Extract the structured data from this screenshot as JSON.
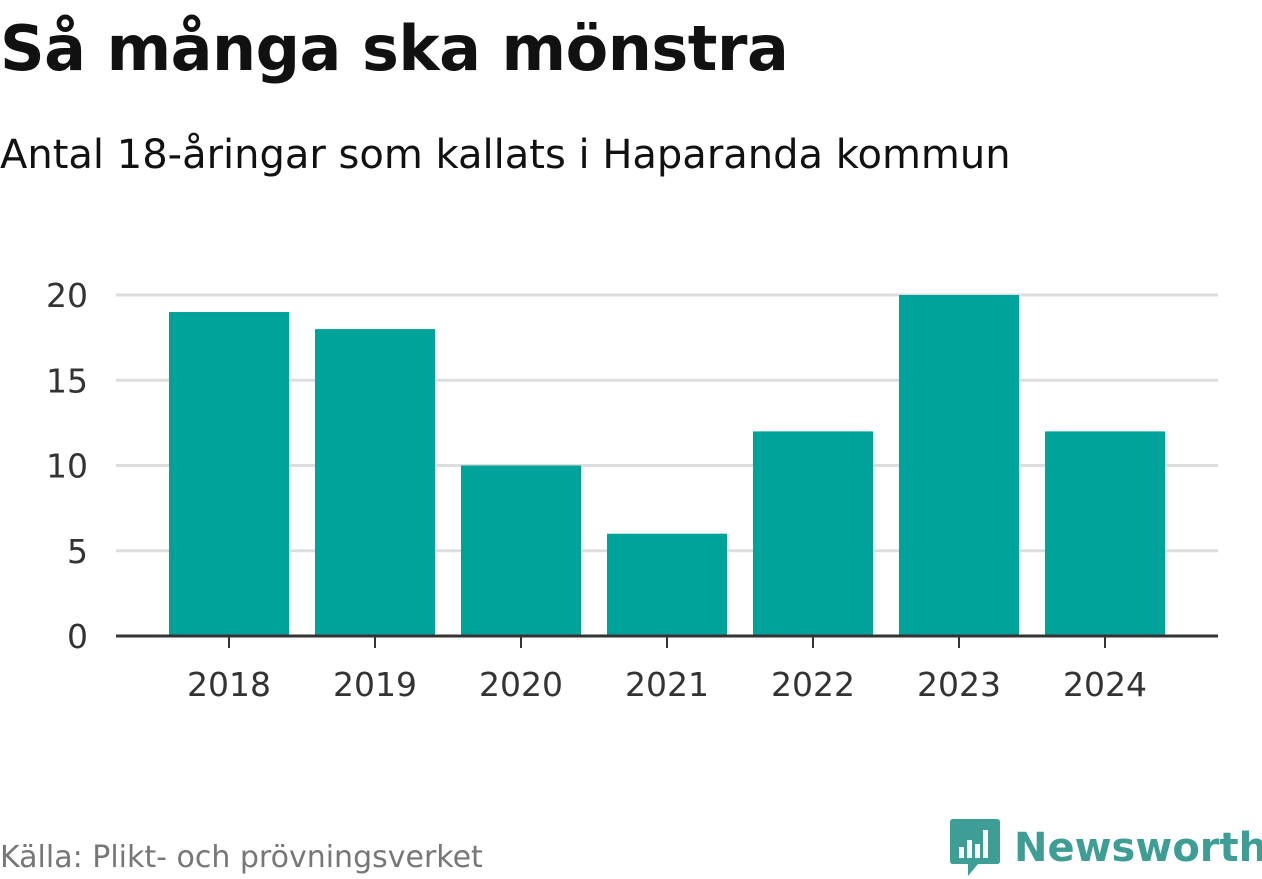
{
  "header": {
    "title": "Så många ska mönstra",
    "subtitle": "Antal 18-åringar som kallats i Haparanda kommun"
  },
  "footer": {
    "source": "Källa: Plikt- och prövningsverket",
    "brand_name": "Newsworthy",
    "brand_icon": "bar-chart-speech-bubble-icon"
  },
  "colors": {
    "bar": "#00a39a",
    "gridline": "#dddddd",
    "axis": "#333333",
    "brand": "#3e9e96"
  },
  "chart_data": {
    "type": "bar",
    "title": "Så många ska mönstra",
    "subtitle": "Antal 18-åringar som kallats i Haparanda kommun",
    "categories": [
      "2018",
      "2019",
      "2020",
      "2021",
      "2022",
      "2023",
      "2024"
    ],
    "values": [
      19,
      18,
      10,
      6,
      12,
      20,
      12
    ],
    "ylim": [
      0,
      20
    ],
    "yticks": [
      0,
      5,
      10,
      15,
      20
    ],
    "grid": true,
    "legend": "none"
  }
}
